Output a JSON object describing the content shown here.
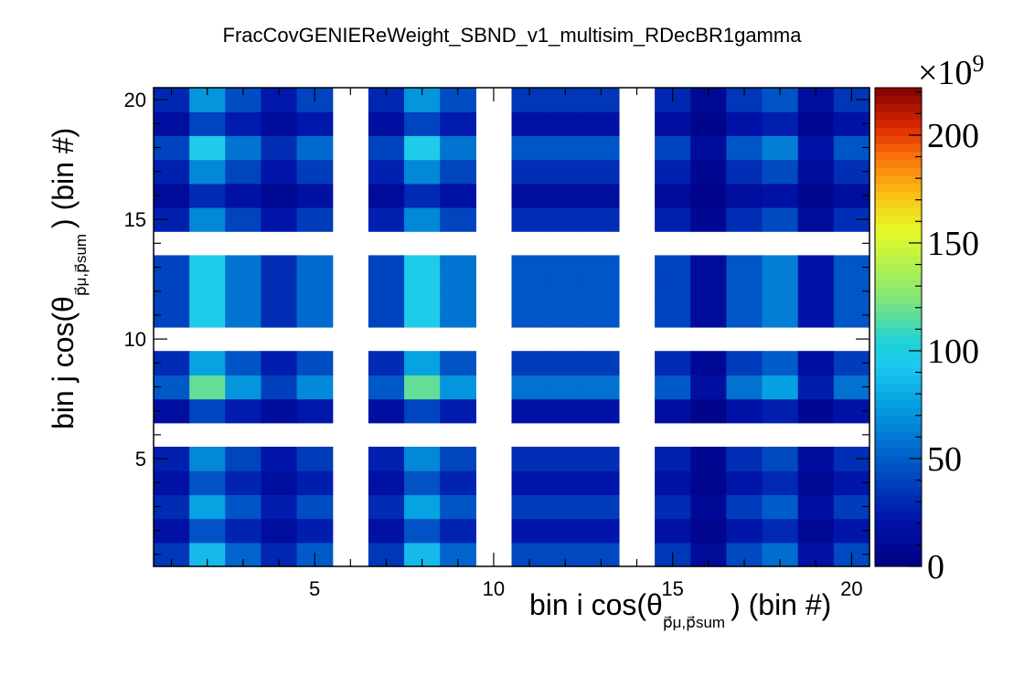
{
  "chart_data": {
    "type": "heatmap",
    "title": "FracCovGENIEReWeight_SBND_v1_multisim_RDecBR1gamma",
    "xlabel": {
      "main": "bin i cos(θ",
      "sub": "p⃗μ,p⃗sum",
      "tail": ") (bin #)"
    },
    "ylabel": {
      "main": "bin j cos(θ",
      "sub": "p⃗μ,p⃗sum",
      "tail": ") (bin #)"
    },
    "xlim": [
      0.5,
      20.5
    ],
    "ylim": [
      0.5,
      20.5
    ],
    "x_ticks": [
      5,
      10,
      15,
      20
    ],
    "y_ticks": [
      5,
      10,
      15,
      20
    ],
    "x_tick_labels": [
      "5",
      "10",
      "15",
      "20"
    ],
    "y_tick_labels": [
      "5",
      "10",
      "15",
      "20"
    ],
    "z_scale_label": "×10",
    "z_scale_exp": "9",
    "zlim": [
      0,
      222
    ],
    "z_ticks": [
      0,
      50,
      100,
      150,
      200
    ],
    "z_tick_labels": [
      "0",
      "50",
      "100",
      "150",
      "200"
    ],
    "colormap": "rainbow (ROOT kRainBow)",
    "grid": false,
    "empty_bins_x": [
      6,
      10,
      14
    ],
    "empty_bins_y": [
      6,
      10,
      14
    ],
    "row_base_values": [
      34,
      18,
      30,
      18,
      26,
      0,
      16,
      46,
      30,
      0,
      38,
      38,
      38,
      0,
      26,
      12,
      26,
      38,
      16,
      28
    ],
    "column_factors": [
      1.05,
      2.55,
      1.55,
      0.85,
      1.45,
      0,
      1.05,
      2.55,
      1.55,
      0,
      1.25,
      1.25,
      1.25,
      0,
      1.05,
      0.35,
      1.25,
      1.65,
      0.55,
      1.25
    ],
    "notes": "z(i,j) = row_base_values[j] * column_factors[i], values in units of 1e9"
  }
}
